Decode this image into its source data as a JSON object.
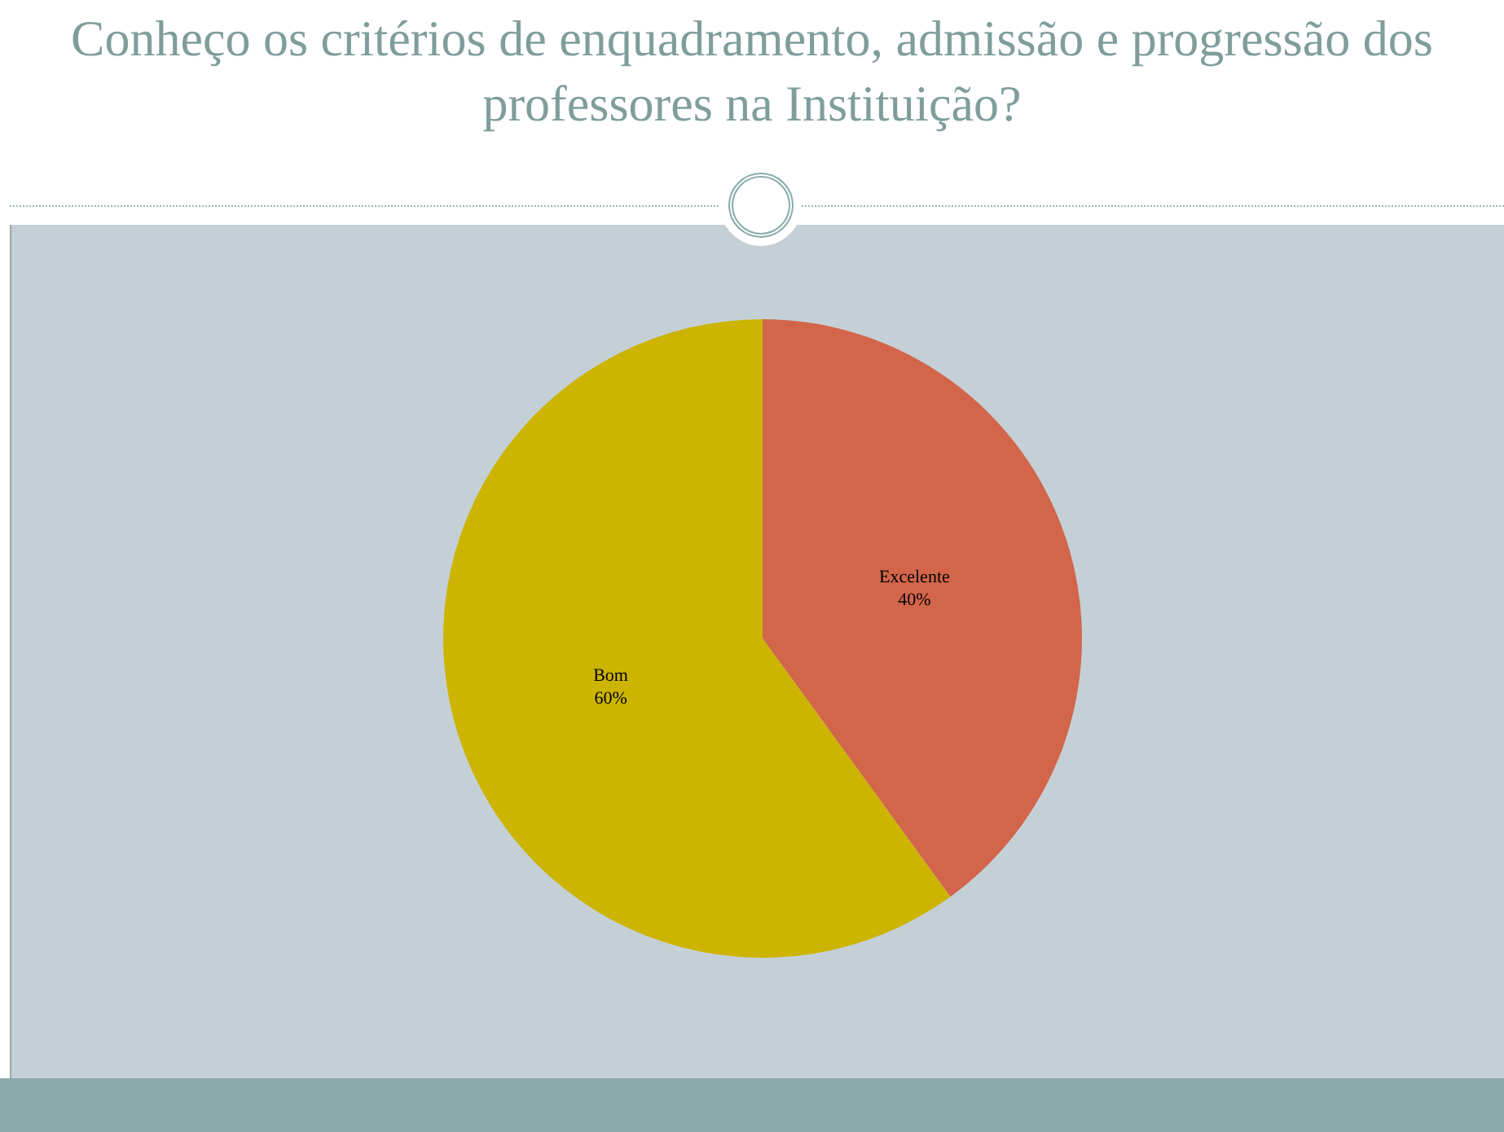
{
  "chart_data": {
    "type": "pie",
    "title": "Conheço os critérios de enquadramento, admissão e progressão dos professores na Instituição?",
    "categories": [
      "Excelente",
      "Bom"
    ],
    "values": [
      40,
      60
    ],
    "colors": [
      "#d2654a",
      "#ccb400"
    ],
    "value_labels": [
      "40%",
      "60%"
    ],
    "legend": false
  }
}
